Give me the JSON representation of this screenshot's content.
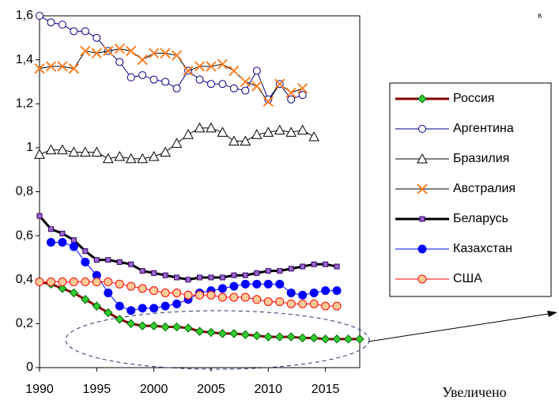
{
  "chart_data": {
    "type": "line",
    "corner_note": "в",
    "bottom_note": "Увеличено",
    "x": [
      1990,
      1991,
      1992,
      1993,
      1994,
      1995,
      1996,
      1997,
      1998,
      1999,
      2000,
      2001,
      2002,
      2003,
      2004,
      2005,
      2006,
      2007,
      2008,
      2009,
      2010,
      2011,
      2012,
      2013,
      2014,
      2015,
      2016,
      2017,
      2018
    ],
    "xlim": [
      1990,
      2018
    ],
    "xticks": [
      1990,
      1995,
      2000,
      2005,
      2010,
      2015
    ],
    "ylim": [
      0,
      1.6
    ],
    "yticks": [
      0,
      {
        "value": 0.2,
        "label": "0,2"
      },
      {
        "value": 0.4,
        "label": "0,4"
      },
      {
        "value": 0.6,
        "label": "0,6"
      },
      {
        "value": 0.8,
        "label": "0,8"
      },
      1,
      {
        "value": 1.2,
        "label": "1,2"
      },
      {
        "value": 1.4,
        "label": "1,4"
      },
      {
        "value": 1.6,
        "label": "1,6"
      }
    ],
    "legend": "right",
    "series": [
      {
        "name": "Россия",
        "color": "#800000",
        "marker": "diamond",
        "marker_color": "#33cc33",
        "width": 3,
        "values": [
          0.39,
          0.38,
          0.36,
          0.34,
          0.31,
          0.28,
          0.25,
          0.22,
          0.2,
          0.19,
          0.19,
          0.185,
          0.185,
          0.18,
          0.165,
          0.16,
          0.155,
          0.155,
          0.15,
          0.145,
          0.14,
          0.14,
          0.14,
          0.135,
          0.135,
          0.13,
          0.13,
          0.13,
          0.13
        ]
      },
      {
        "name": "Аргентина",
        "color": "#000080",
        "marker": "circle-open",
        "marker_color": "#ffffff",
        "width": 1,
        "values": [
          1.6,
          1.57,
          1.56,
          1.53,
          1.53,
          1.5,
          1.44,
          1.39,
          1.32,
          1.33,
          1.31,
          1.3,
          1.27,
          1.35,
          1.31,
          1.29,
          1.29,
          1.27,
          1.26,
          1.35,
          1.22,
          1.29,
          1.22,
          1.24,
          null,
          null,
          null,
          null,
          null
        ]
      },
      {
        "name": "Бразилия",
        "color": "#000000",
        "marker": "triangle",
        "marker_color": "#ffffff",
        "width": 1,
        "values": [
          0.97,
          0.99,
          0.99,
          0.98,
          0.98,
          0.98,
          0.95,
          0.96,
          0.95,
          0.95,
          0.96,
          0.98,
          1.02,
          1.06,
          1.09,
          1.09,
          1.07,
          1.03,
          1.03,
          1.06,
          1.07,
          1.08,
          1.07,
          1.08,
          1.05,
          null,
          null,
          null,
          null
        ]
      },
      {
        "name": "Австралия",
        "color": "#000000",
        "marker": "x",
        "marker_color": "#ff7f27",
        "width": 1,
        "values": [
          1.36,
          1.37,
          1.37,
          1.36,
          1.44,
          1.43,
          1.44,
          1.45,
          1.44,
          1.4,
          1.43,
          1.43,
          1.42,
          1.35,
          1.37,
          1.37,
          1.38,
          1.35,
          1.3,
          1.28,
          1.21,
          1.29,
          1.25,
          1.27,
          null,
          null,
          null,
          null,
          null
        ]
      },
      {
        "name": "Беларусь",
        "color": "#000000",
        "marker": "square",
        "marker_color": "#9966cc",
        "width": 3,
        "values": [
          0.69,
          0.63,
          0.61,
          0.58,
          0.53,
          0.49,
          0.49,
          0.48,
          0.47,
          0.44,
          0.43,
          0.42,
          0.41,
          0.4,
          0.41,
          0.41,
          0.41,
          0.42,
          0.42,
          0.43,
          0.44,
          0.44,
          0.45,
          0.46,
          0.47,
          0.47,
          0.46,
          null,
          null
        ]
      },
      {
        "name": "Казахстан",
        "color": "#0000ff",
        "marker": "circle",
        "marker_color": "#0000ff",
        "width": 1,
        "values": [
          null,
          0.57,
          0.57,
          0.55,
          0.48,
          0.42,
          0.34,
          0.28,
          0.26,
          0.27,
          0.27,
          0.28,
          0.29,
          0.31,
          0.34,
          0.35,
          0.36,
          0.37,
          0.38,
          0.38,
          0.38,
          0.38,
          0.34,
          0.33,
          0.34,
          0.35,
          0.35,
          null,
          null
        ]
      },
      {
        "name": "США",
        "color": "#ff0000",
        "marker": "circle",
        "marker_color": "#ffcc99",
        "width": 1,
        "values": [
          0.39,
          0.39,
          0.39,
          0.39,
          0.39,
          0.39,
          0.39,
          0.38,
          0.37,
          0.36,
          0.35,
          0.34,
          0.34,
          0.33,
          0.33,
          0.33,
          0.32,
          0.32,
          0.32,
          0.31,
          0.3,
          0.3,
          0.29,
          0.29,
          0.29,
          0.28,
          0.28,
          null,
          null
        ]
      }
    ]
  }
}
